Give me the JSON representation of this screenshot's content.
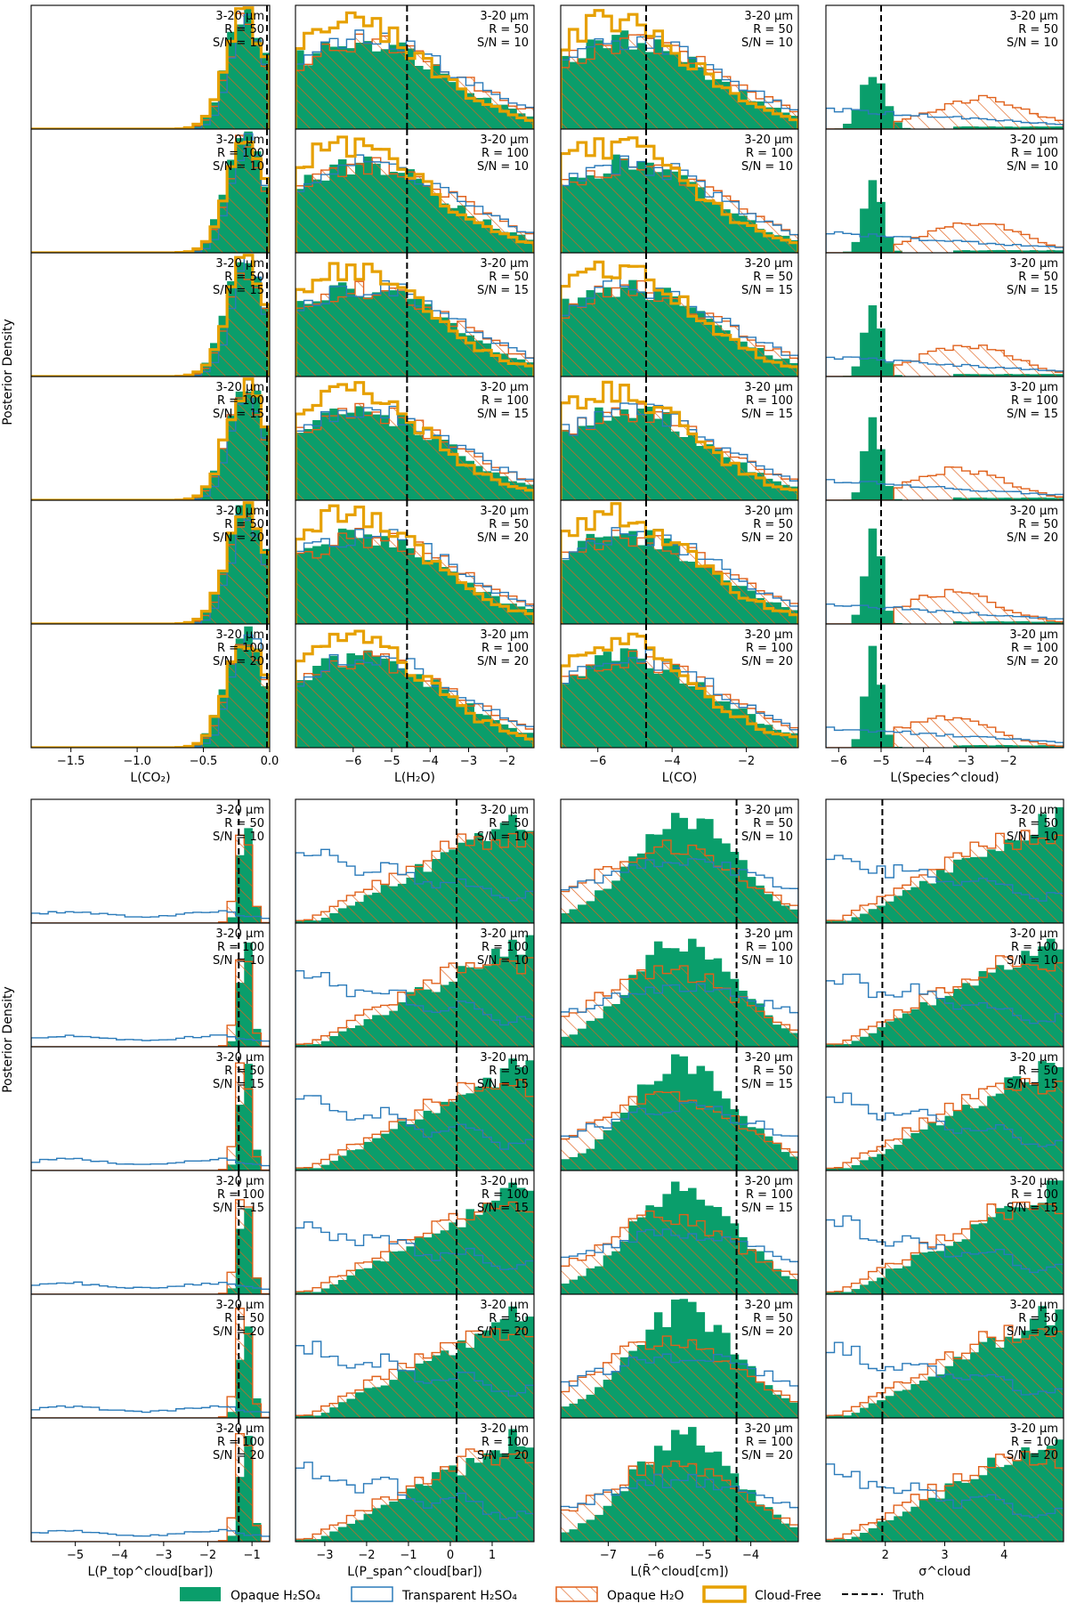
{
  "figure": {
    "ylabel_top": "Posterior Density",
    "ylabel_bottom": "Posterior Density",
    "config_rows": [
      {
        "wavelength": "3-20 μm",
        "resolution": "R = 50",
        "snr": "S/N = 10"
      },
      {
        "wavelength": "3-20 μm",
        "resolution": "R = 100",
        "snr": "S/N = 10"
      },
      {
        "wavelength": "3-20 μm",
        "resolution": "R = 50",
        "snr": "S/N = 15"
      },
      {
        "wavelength": "3-20 μm",
        "resolution": "R = 100",
        "snr": "S/N = 15"
      },
      {
        "wavelength": "3-20 μm",
        "resolution": "R = 50",
        "snr": "S/N = 20"
      },
      {
        "wavelength": "3-20 μm",
        "resolution": "R = 100",
        "snr": "S/N = 20"
      }
    ],
    "legend": [
      {
        "label": "Opaque H₂SO₄",
        "style": "filled",
        "color": "#0a9e6b"
      },
      {
        "label": "Transparent H₂SO₄",
        "style": "step",
        "color": "#2b7bba"
      },
      {
        "label": "Opaque H₂O",
        "style": "hatched",
        "color": "#e0611b"
      },
      {
        "label": "Cloud-Free",
        "style": "thick-step",
        "color": "#e6a000"
      },
      {
        "label": "Truth",
        "style": "dashed",
        "color": "#000000"
      }
    ],
    "colors": {
      "opaque_h2so4": "#0a9e6b",
      "transparent_h2so4": "#2b7bba",
      "opaque_h2o": "#e0611b",
      "cloud_free": "#e6a000",
      "truth": "#000000"
    }
  },
  "chart_data": [
    {
      "type": "histogram",
      "id": "co2",
      "block": "top",
      "xlabel": "L(CO₂)",
      "xlim": [
        -1.8,
        0.0
      ],
      "xticks": [
        -1.5,
        -1.0,
        -0.5,
        0.0
      ],
      "xticklabels": [
        "−1.5",
        "−1.0",
        "−0.5",
        "0.0"
      ],
      "truth": -0.02,
      "peak": -0.15,
      "series_shape": "peaked-right"
    },
    {
      "type": "histogram",
      "id": "h2o",
      "block": "top",
      "xlabel": "L(H₂O)",
      "xlim": [
        -7.5,
        -1.3
      ],
      "xticks": [
        -6,
        -5,
        -4,
        -3,
        -2
      ],
      "xticklabels": [
        "−6",
        "−5",
        "−4",
        "−3",
        "−2"
      ],
      "truth": -4.6,
      "series_shape": "broad-left"
    },
    {
      "type": "histogram",
      "id": "co",
      "block": "top",
      "xlabel": "L(CO)",
      "xlim": [
        -7.0,
        -0.6
      ],
      "xticks": [
        -6,
        -4,
        -2
      ],
      "xticklabels": [
        "−6",
        "−4",
        "−2"
      ],
      "truth": -4.7,
      "series_shape": "broad-left"
    },
    {
      "type": "histogram",
      "id": "species_cloud",
      "block": "top",
      "xlabel": "L(Species^cloud)",
      "xlim": [
        -6.3,
        -0.7
      ],
      "xticks": [
        -6,
        -5,
        -4,
        -3,
        -2
      ],
      "xticklabels": [
        "−6",
        "−5",
        "−4",
        "−3",
        "−2"
      ],
      "truth": -5.0,
      "series_shape": "cloud-species"
    },
    {
      "type": "histogram",
      "id": "p_top",
      "block": "bottom",
      "xlabel": "L(P_top^cloud[bar])",
      "xlim": [
        -6.0,
        -0.6
      ],
      "xticks": [
        -5,
        -4,
        -3,
        -2,
        -1
      ],
      "xticklabels": [
        "−5",
        "−4",
        "−3",
        "−2",
        "−1"
      ],
      "truth": -1.3,
      "series_shape": "narrow-right"
    },
    {
      "type": "histogram",
      "id": "p_span",
      "block": "bottom",
      "xlabel": "L(P_span^cloud[bar])",
      "xlim": [
        -3.7,
        2.0
      ],
      "xticks": [
        -3,
        -2,
        -1,
        0,
        1
      ],
      "xticklabels": [
        "−3",
        "−2",
        "−1",
        "0",
        "1"
      ],
      "truth": 0.15,
      "series_shape": "rising-right"
    },
    {
      "type": "histogram",
      "id": "r_cloud",
      "block": "bottom",
      "xlabel": "L(R̄^cloud[cm])",
      "xlim": [
        -8.0,
        -3.0
      ],
      "xticks": [
        -7,
        -6,
        -5,
        -4
      ],
      "xticklabels": [
        "−7",
        "−6",
        "−5",
        "−4"
      ],
      "truth": -4.3,
      "series_shape": "hump"
    },
    {
      "type": "histogram",
      "id": "sigma_cloud",
      "block": "bottom",
      "xlabel": "σ^cloud",
      "xlim": [
        1.0,
        5.0
      ],
      "xticks": [
        2,
        3,
        4
      ],
      "xticklabels": [
        "2",
        "3",
        "4"
      ],
      "truth": 1.95,
      "series_shape": "rising-right"
    }
  ]
}
